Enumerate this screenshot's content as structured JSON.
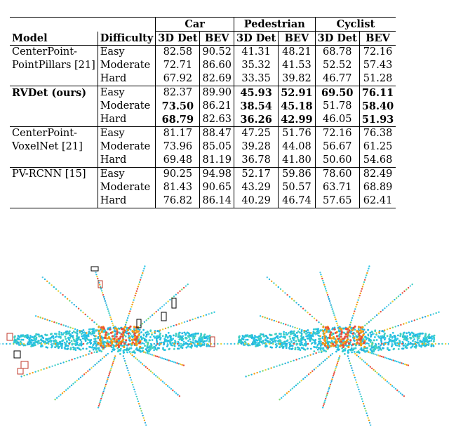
{
  "table": {
    "group_headers": [
      "Car",
      "Pedestrian",
      "Cyclist"
    ],
    "sub_headers": [
      "3D Det",
      "BEV",
      "3D Det",
      "BEV",
      "3D Det",
      "BEV"
    ],
    "model_header": "Model",
    "difficulty_header": "Difficulty",
    "rows": [
      {
        "model": "CenterPoint-",
        "diff": "Easy",
        "vals": [
          "82.58",
          "90.52",
          "41.31",
          "48.21",
          "68.78",
          "72.16"
        ],
        "bold": [
          false,
          false,
          false,
          false,
          false,
          false
        ],
        "model_bold": false,
        "rule": "top"
      },
      {
        "model": "PointPillars [21]",
        "diff": "Moderate",
        "vals": [
          "72.71",
          "86.60",
          "35.32",
          "41.53",
          "52.52",
          "57.43"
        ],
        "bold": [
          false,
          false,
          false,
          false,
          false,
          false
        ],
        "model_bold": false,
        "rule": ""
      },
      {
        "model": "",
        "diff": "Hard",
        "vals": [
          "67.92",
          "82.69",
          "33.35",
          "39.82",
          "46.77",
          "51.28"
        ],
        "bold": [
          false,
          false,
          false,
          false,
          false,
          false
        ],
        "model_bold": false,
        "rule": ""
      },
      {
        "model": "RVDet (ours)",
        "diff": "Easy",
        "vals": [
          "82.37",
          "89.90",
          "45.93",
          "52.91",
          "69.50",
          "76.11"
        ],
        "bold": [
          false,
          false,
          true,
          true,
          true,
          true
        ],
        "model_bold": true,
        "rule": "top"
      },
      {
        "model": "",
        "diff": "Moderate",
        "vals": [
          "73.50",
          "86.21",
          "38.54",
          "45.18",
          "51.78",
          "58.40"
        ],
        "bold": [
          true,
          false,
          true,
          true,
          false,
          true
        ],
        "model_bold": false,
        "rule": ""
      },
      {
        "model": "",
        "diff": "Hard",
        "vals": [
          "68.79",
          "82.63",
          "36.26",
          "42.99",
          "46.05",
          "51.93"
        ],
        "bold": [
          true,
          false,
          true,
          true,
          false,
          true
        ],
        "model_bold": false,
        "rule": ""
      },
      {
        "model": "CenterPoint-",
        "diff": "Easy",
        "vals": [
          "81.17",
          "88.47",
          "47.25",
          "51.76",
          "72.16",
          "76.38"
        ],
        "bold": [
          false,
          false,
          false,
          false,
          false,
          false
        ],
        "model_bold": false,
        "rule": "top"
      },
      {
        "model": "VoxelNet [21]",
        "diff": "Moderate",
        "vals": [
          "73.96",
          "85.05",
          "39.28",
          "44.08",
          "56.67",
          "61.25"
        ],
        "bold": [
          false,
          false,
          false,
          false,
          false,
          false
        ],
        "model_bold": false,
        "rule": ""
      },
      {
        "model": "",
        "diff": "Hard",
        "vals": [
          "69.48",
          "81.19",
          "36.78",
          "41.80",
          "50.60",
          "54.68"
        ],
        "bold": [
          false,
          false,
          false,
          false,
          false,
          false
        ],
        "model_bold": false,
        "rule": ""
      },
      {
        "model": "PV-RCNN [15]",
        "diff": "Easy",
        "vals": [
          "90.25",
          "94.98",
          "52.17",
          "59.86",
          "78.60",
          "82.49"
        ],
        "bold": [
          false,
          false,
          false,
          false,
          false,
          false
        ],
        "model_bold": false,
        "rule": "top"
      },
      {
        "model": "",
        "diff": "Moderate",
        "vals": [
          "81.43",
          "90.65",
          "43.29",
          "50.57",
          "63.71",
          "68.89"
        ],
        "bold": [
          false,
          false,
          false,
          false,
          false,
          false
        ],
        "model_bold": false,
        "rule": ""
      },
      {
        "model": "",
        "diff": "Hard",
        "vals": [
          "76.82",
          "86.14",
          "40.29",
          "46.74",
          "57.65",
          "62.41"
        ],
        "bold": [
          false,
          false,
          false,
          false,
          false,
          false
        ],
        "model_bold": false,
        "rule": "bottom"
      }
    ]
  },
  "colors": {
    "red_box": "#c0392b",
    "black_box": "#000000",
    "cyan": "#21b8e0",
    "orange": "#f39c12"
  }
}
